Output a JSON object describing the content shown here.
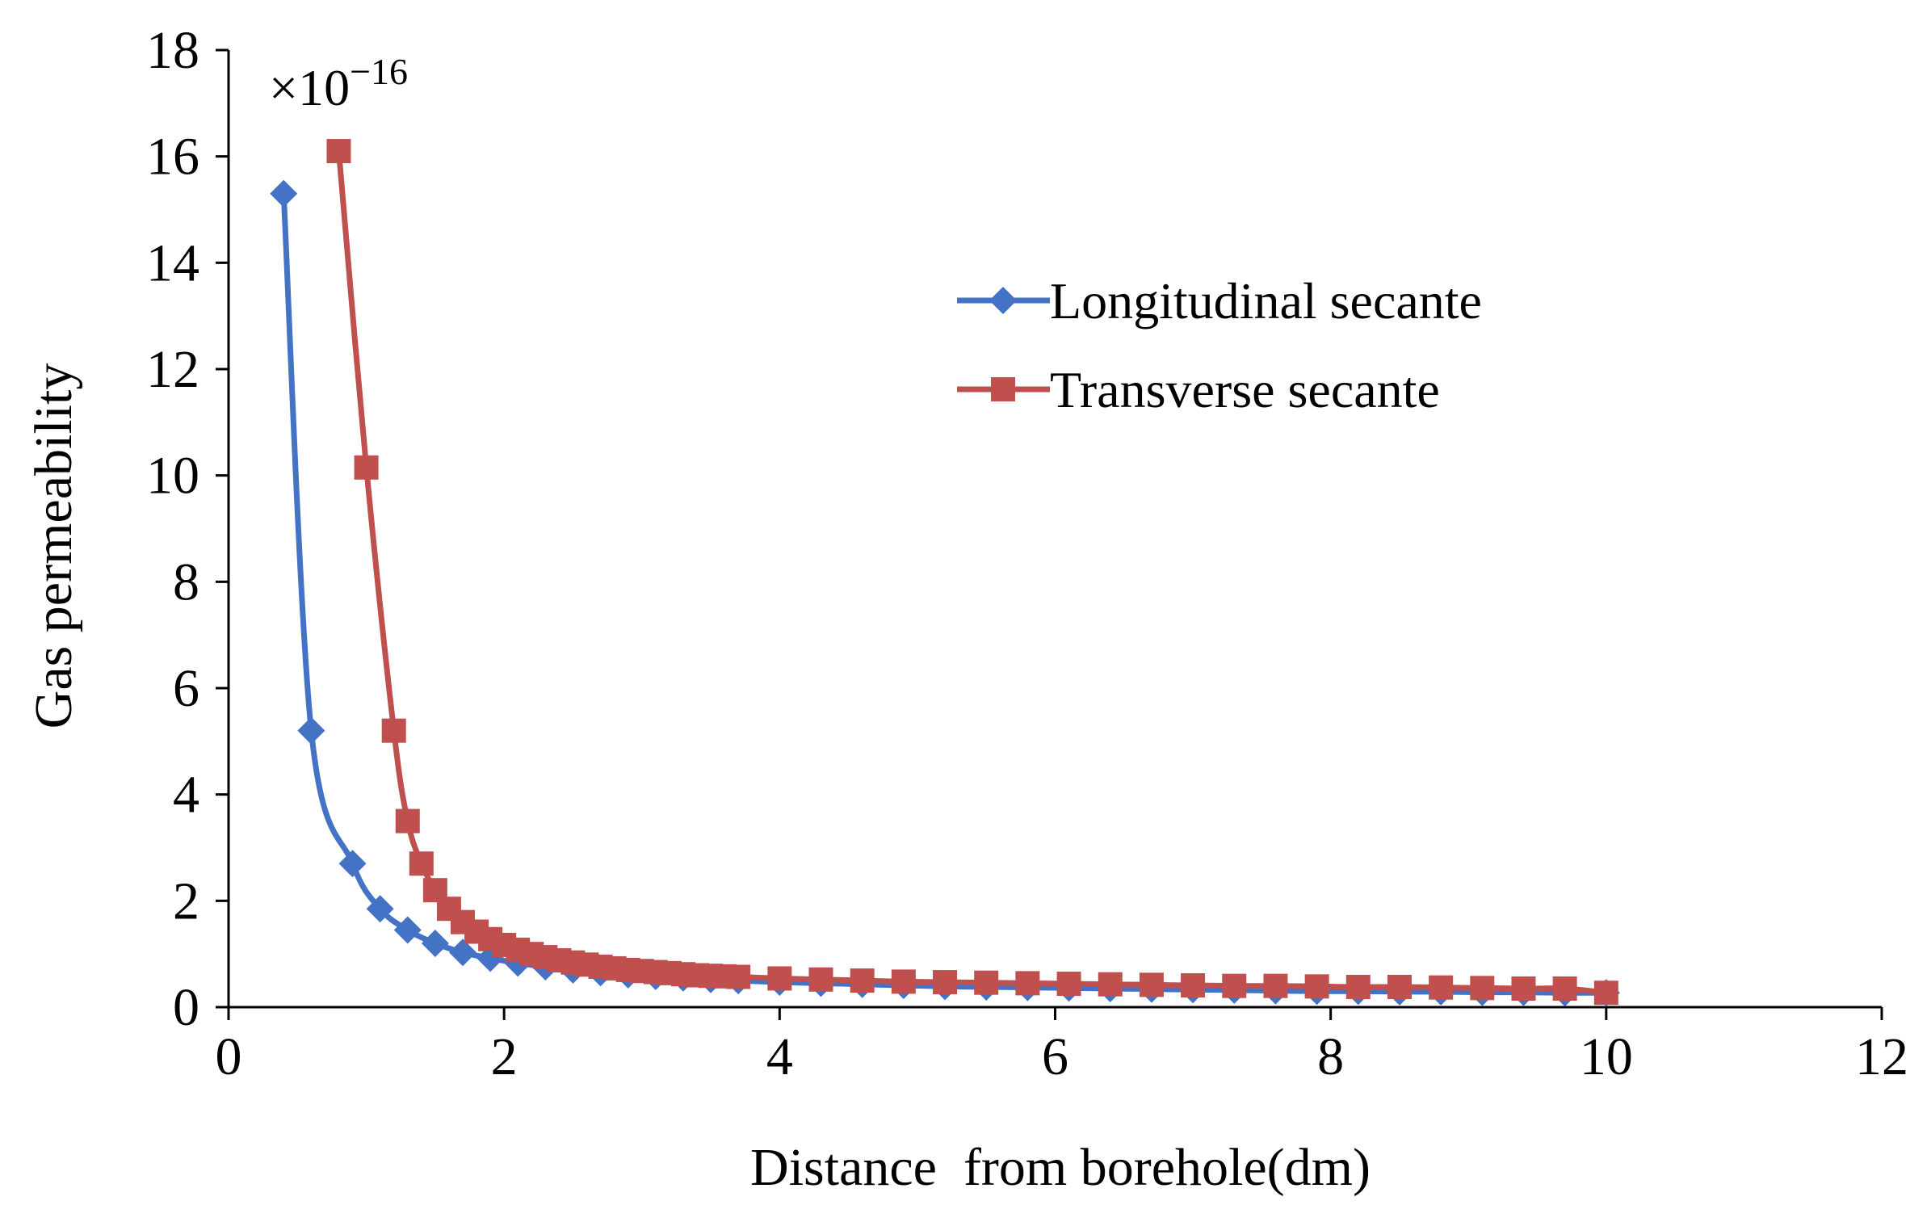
{
  "chart_data": {
    "type": "line",
    "title": "",
    "xlabel": "Distance  from borehole(dm)",
    "ylabel": "Gas permeability",
    "multiplier": {
      "prefix": "×10",
      "exponent": "−16"
    },
    "xlim": [
      0,
      12
    ],
    "ylim": [
      0,
      18
    ],
    "xticks": [
      0,
      2,
      4,
      6,
      8,
      10,
      12
    ],
    "yticks": [
      0,
      2,
      4,
      6,
      8,
      10,
      12,
      14,
      16,
      18
    ],
    "xtick_labels": [
      "0",
      "2",
      "4",
      "6",
      "8",
      "10",
      "12"
    ],
    "ytick_labels": [
      "0",
      "2",
      "4",
      "6",
      "8",
      "10",
      "12",
      "14",
      "16",
      "18"
    ],
    "grid": false,
    "legend_position": "top-right",
    "series": [
      {
        "name": "Longitudinal secante",
        "color": "#4472C4",
        "marker": "diamond",
        "x": [
          0.4,
          0.6,
          0.9,
          1.1,
          1.3,
          1.5,
          1.7,
          1.9,
          2.1,
          2.3,
          2.5,
          2.7,
          2.9,
          3.1,
          3.3,
          3.5,
          3.7,
          4.0,
          4.3,
          4.6,
          4.9,
          5.2,
          5.5,
          5.8,
          6.1,
          6.4,
          6.7,
          7.0,
          7.3,
          7.6,
          7.9,
          8.2,
          8.5,
          8.8,
          9.1,
          9.4,
          9.7,
          10.0
        ],
        "y": [
          15.3,
          5.2,
          2.7,
          1.85,
          1.45,
          1.2,
          1.03,
          0.92,
          0.83,
          0.76,
          0.7,
          0.65,
          0.61,
          0.58,
          0.55,
          0.52,
          0.5,
          0.47,
          0.45,
          0.43,
          0.41,
          0.39,
          0.38,
          0.37,
          0.36,
          0.35,
          0.34,
          0.33,
          0.32,
          0.31,
          0.3,
          0.3,
          0.29,
          0.29,
          0.28,
          0.28,
          0.27,
          0.27
        ]
      },
      {
        "name": "Transverse secante",
        "color": "#C0504D",
        "marker": "square",
        "x": [
          0.8,
          1.0,
          1.2,
          1.3,
          1.4,
          1.5,
          1.6,
          1.7,
          1.8,
          1.9,
          2.0,
          2.1,
          2.2,
          2.3,
          2.4,
          2.5,
          2.6,
          2.7,
          2.8,
          2.9,
          3.0,
          3.1,
          3.2,
          3.3,
          3.4,
          3.5,
          3.6,
          3.7,
          4.0,
          4.3,
          4.6,
          4.9,
          5.2,
          5.5,
          5.8,
          6.1,
          6.4,
          6.7,
          7.0,
          7.3,
          7.6,
          7.9,
          8.2,
          8.5,
          8.8,
          9.1,
          9.4,
          9.7,
          10.0
        ],
        "y": [
          16.1,
          10.15,
          5.2,
          3.5,
          2.7,
          2.2,
          1.85,
          1.6,
          1.42,
          1.28,
          1.17,
          1.08,
          1.0,
          0.94,
          0.88,
          0.84,
          0.8,
          0.76,
          0.73,
          0.7,
          0.68,
          0.66,
          0.64,
          0.62,
          0.6,
          0.59,
          0.58,
          0.57,
          0.54,
          0.52,
          0.5,
          0.48,
          0.47,
          0.46,
          0.45,
          0.44,
          0.43,
          0.42,
          0.41,
          0.4,
          0.4,
          0.39,
          0.38,
          0.38,
          0.37,
          0.36,
          0.35,
          0.35,
          0.27
        ]
      }
    ]
  }
}
